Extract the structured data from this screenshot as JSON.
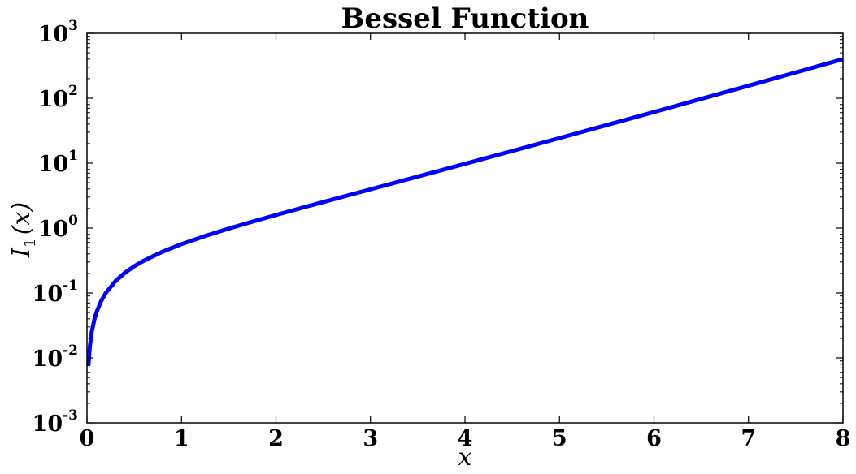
{
  "chart_data": {
    "type": "line",
    "title": "Bessel Function",
    "xlabel": {
      "base": "x"
    },
    "ylabel": {
      "fn": "I",
      "sub": "1",
      "arg": "(x)"
    },
    "xlim": [
      0,
      8
    ],
    "ylim": [
      0.001,
      1000
    ],
    "yscale": "log",
    "grid": false,
    "x_ticks": [
      "0",
      "1",
      "2",
      "3",
      "4",
      "5",
      "6",
      "7",
      "8"
    ],
    "y_ticks": [
      {
        "base": "10",
        "exp": "-3"
      },
      {
        "base": "10",
        "exp": "-2"
      },
      {
        "base": "10",
        "exp": "-1"
      },
      {
        "base": "10",
        "exp": "0"
      },
      {
        "base": "10",
        "exp": "1"
      },
      {
        "base": "10",
        "exp": "2"
      },
      {
        "base": "10",
        "exp": "3"
      }
    ],
    "series": [
      {
        "color": "#0000ff",
        "x": [
          0.015,
          0.03,
          0.05,
          0.08,
          0.1,
          0.15,
          0.2,
          0.3,
          0.4,
          0.5,
          0.6,
          0.8,
          1.0,
          1.25,
          1.5,
          1.75,
          2.0,
          2.5,
          3.0,
          3.5,
          4.0,
          4.5,
          5.0,
          5.5,
          6.0,
          6.5,
          7.0,
          7.5,
          8.0
        ],
        "y": [
          0.0075,
          0.015,
          0.025,
          0.0401,
          0.0501,
          0.0753,
          0.1005,
          0.1517,
          0.204,
          0.2579,
          0.3137,
          0.4329,
          0.5652,
          0.7553,
          0.9817,
          1.2543,
          1.5906,
          2.5167,
          3.9534,
          6.2058,
          9.7595,
          15.3892,
          24.3356,
          38.5882,
          61.3419,
          97.735,
          156.04,
          249.58,
          399.87
        ]
      }
    ]
  }
}
